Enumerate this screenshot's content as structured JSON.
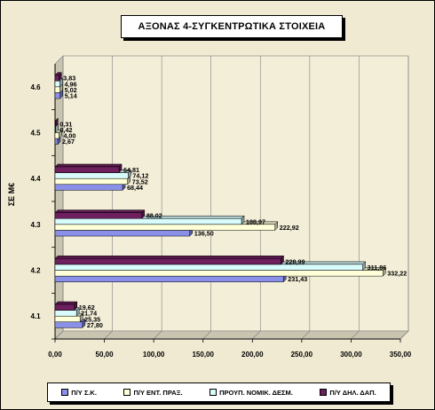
{
  "chart_data": {
    "type": "bar",
    "orientation": "horizontal",
    "title": "ΑΞΟΝΑΣ 4-ΣΥΓΚΕΝΤΡΩΤΙΚΑ ΣΤΟΙΧΕΙΑ",
    "ylabel": "ΣΕ Μ€",
    "xlabel": "",
    "categories": [
      "4.1",
      "4.2",
      "4.3",
      "4.4",
      "4.5",
      "4.6"
    ],
    "xlim": [
      0,
      350
    ],
    "xticks": [
      "0,00",
      "50,00",
      "100,00",
      "150,00",
      "200,00",
      "250,00",
      "300,00",
      "350,00"
    ],
    "grid": "vertical",
    "legend_position": "bottom",
    "series": [
      {
        "name": "Π/Υ Σ.Κ.",
        "color": "#8a8fe8",
        "values": [
          27.8,
          231.43,
          136.5,
          68.44,
          2.67,
          5.14
        ],
        "labels": [
          "27,80",
          "231,43",
          "136,50",
          "68,44",
          "2,67",
          "5,14"
        ]
      },
      {
        "name": "Π/Υ ΕΝΤ. ΠΡΑΞ.",
        "color": "#ffffd8",
        "values": [
          25.35,
          332.22,
          222.92,
          73.52,
          4.0,
          5.02
        ],
        "labels": [
          "25,35",
          "332,22",
          "222,92",
          "73,52",
          "4,00",
          "5,02"
        ]
      },
      {
        "name": "ΠΡΟΥΠ. ΝΟΜΙΚ. ΔΕΣΜ.",
        "color": "#d8fbfb",
        "values": [
          21.74,
          311.86,
          188.97,
          74.12,
          0.42,
          4.96
        ],
        "labels": [
          "21,74",
          "311,86",
          "188,97",
          "74,12",
          "0,42",
          "4,96"
        ]
      },
      {
        "name": "Π/Υ ΔΗΛ. ΔΑΠ.",
        "color": "#6e1f5e",
        "values": [
          19.62,
          228.99,
          88.02,
          64.81,
          0.31,
          3.83
        ],
        "labels": [
          "19,62",
          "228,99",
          "88,02",
          "64,81",
          "0,31",
          "3,83"
        ]
      }
    ]
  }
}
